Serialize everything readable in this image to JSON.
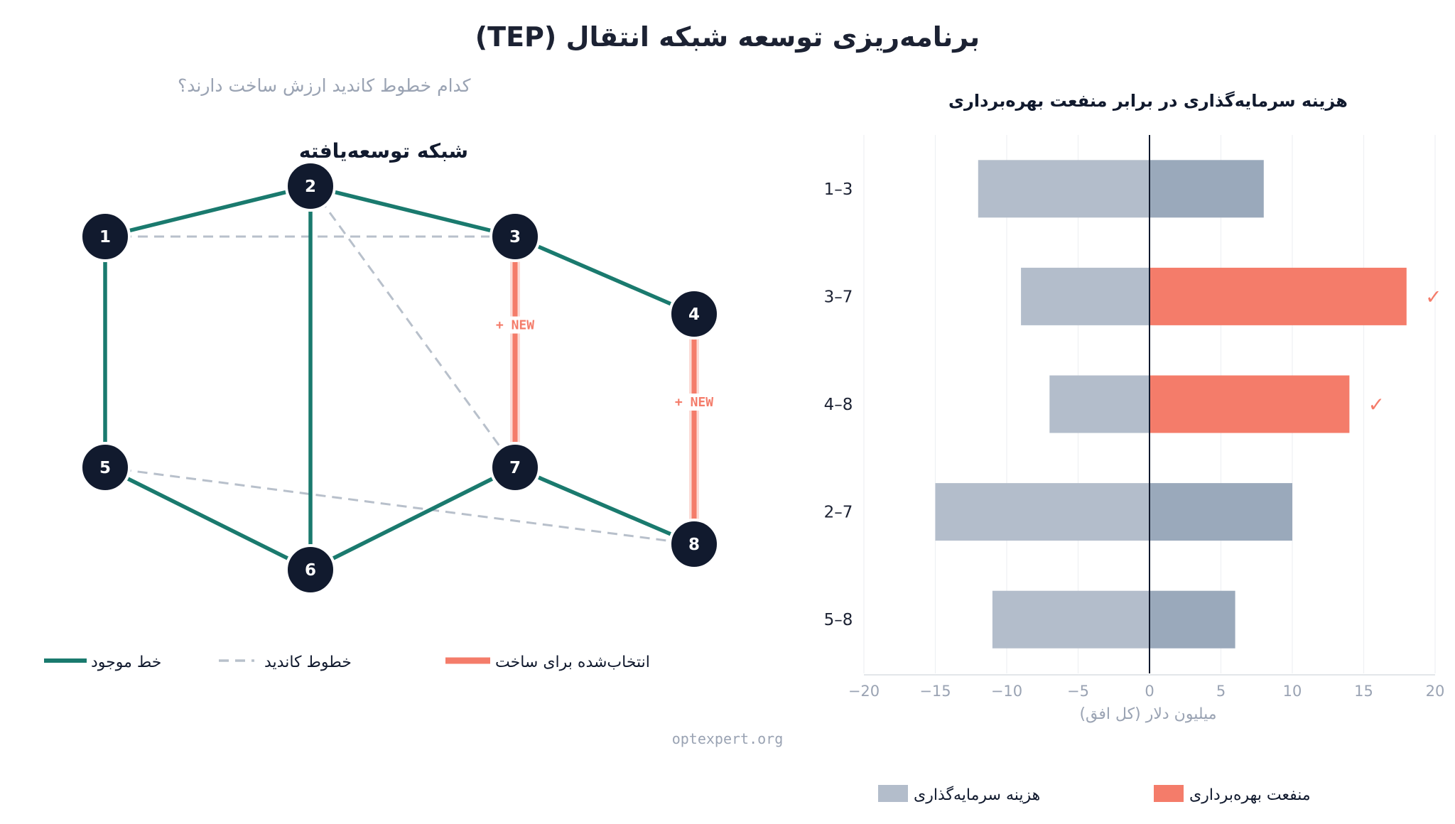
{
  "title": "برنامه‌ریزی توسعه شبکه انتقال (TEP)",
  "subtitle": "کدام خطوط کاندید ارزش ساخت دارند؟",
  "footer": "optexpert.org",
  "colors": {
    "existing": "#1a7a6e",
    "candidate": "#b8c0cb",
    "selected": "#f47c6a",
    "node": "#111a2e",
    "cost": "#b3bdcb",
    "benefit_unselected": "#9aa9bb"
  },
  "network": {
    "title": "شبکه توسعه‌یافته",
    "nodes": [
      {
        "id": "1"
      },
      {
        "id": "2"
      },
      {
        "id": "3"
      },
      {
        "id": "4"
      },
      {
        "id": "5"
      },
      {
        "id": "6"
      },
      {
        "id": "7"
      },
      {
        "id": "8"
      }
    ],
    "existing_lines": [
      [
        "1",
        "2"
      ],
      [
        "2",
        "3"
      ],
      [
        "3",
        "4"
      ],
      [
        "1",
        "5"
      ],
      [
        "2",
        "6"
      ],
      [
        "5",
        "6"
      ],
      [
        "6",
        "7"
      ],
      [
        "7",
        "8"
      ]
    ],
    "candidate_lines": [
      [
        "1",
        "3"
      ],
      [
        "2",
        "7"
      ],
      [
        "5",
        "8"
      ]
    ],
    "selected_lines": [
      {
        "from": "3",
        "to": "7",
        "label": "+ NEW"
      },
      {
        "from": "4",
        "to": "8",
        "label": "+ NEW"
      }
    ],
    "legend": [
      {
        "key": "existing",
        "label": "خط موجود"
      },
      {
        "key": "candidate",
        "label": "خطوط کاندید"
      },
      {
        "key": "selected",
        "label": "انتخاب‌شده برای ساخت"
      }
    ]
  },
  "chart_data": {
    "type": "bar",
    "title": "هزینه سرمایه‌گذاری در برابر منفعت بهره‌برداری",
    "xlabel": "میلیون دلار (کل افق)",
    "xlim": [
      -20,
      20
    ],
    "xticks": [
      -20,
      -15,
      -10,
      -5,
      0,
      5,
      10,
      15,
      20
    ],
    "categories": [
      "1–3",
      "3–7",
      "4–8",
      "2–7",
      "5–8"
    ],
    "series": [
      {
        "name": "هزینه سرمایه‌گذاری",
        "values": [
          -12,
          -9,
          -7,
          -15,
          -11
        ]
      },
      {
        "name": "منفعت بهره‌برداری",
        "values": [
          8,
          18,
          14,
          10,
          6
        ]
      }
    ],
    "selected": [
      "3–7",
      "4–8"
    ],
    "selected_mark": "✓",
    "legend_position": "bottom",
    "grid": true
  }
}
